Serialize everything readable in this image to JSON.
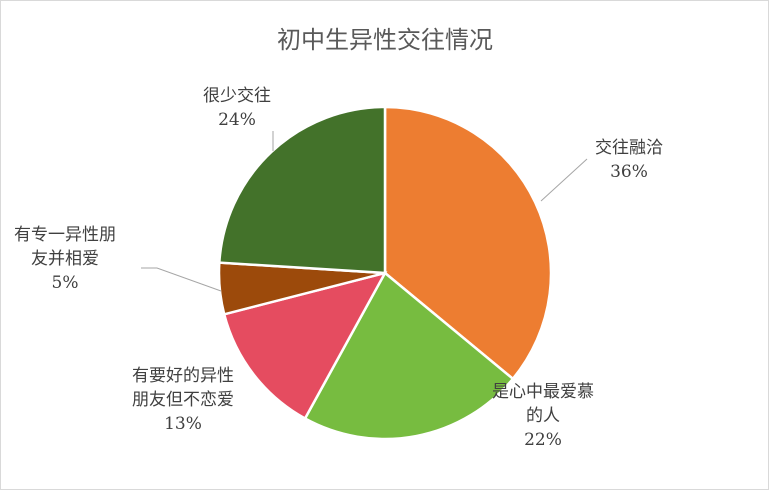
{
  "chart_data": {
    "type": "pie",
    "title": "初中生异性交往情况",
    "slices": [
      {
        "name": "交往融洽",
        "label_lines": [
          "交往融洽"
        ],
        "value": 36,
        "percent_label": "36%",
        "color": "#ED7D31"
      },
      {
        "name": "是心中最爱慕的人",
        "label_lines": [
          "是心中最爱慕",
          "的人"
        ],
        "value": 22,
        "percent_label": "22%",
        "color": "#77BC40"
      },
      {
        "name": "有要好的异性朋友但不恋爱",
        "label_lines": [
          "有要好的异性",
          "朋友但不恋爱"
        ],
        "value": 13,
        "percent_label": "13%",
        "color": "#E54C60"
      },
      {
        "name": "有专一异性朋友并相爱",
        "label_lines": [
          "有专一异性朋",
          "友并相爱"
        ],
        "value": 5,
        "percent_label": "5%",
        "color": "#9C4A0B"
      },
      {
        "name": "很少交往",
        "label_lines": [
          "很少交往"
        ],
        "value": 24,
        "percent_label": "24%",
        "color": "#43722A"
      }
    ],
    "legend": "none"
  }
}
